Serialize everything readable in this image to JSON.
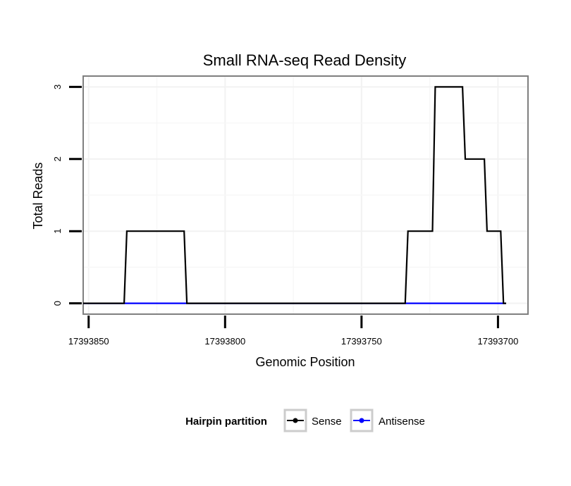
{
  "chart_data": {
    "type": "line",
    "title": "Small RNA-seq Read Density",
    "xlabel": "Genomic Position",
    "ylabel": "Total Reads",
    "x_reversed": true,
    "xlim": [
      17393852,
      17393689
    ],
    "ylim": [
      -0.15,
      3.15
    ],
    "xticks": [
      17393850,
      17393800,
      17393750,
      17393700
    ],
    "xtick_labels": [
      "17393850",
      "17393800",
      "17393750",
      "17393700"
    ],
    "yticks": [
      0,
      1,
      2,
      3
    ],
    "ytick_labels": [
      "0",
      "1",
      "2",
      "3"
    ],
    "grid": true,
    "legend": {
      "title": "Hairpin partition",
      "position": "bottom"
    },
    "series": [
      {
        "name": "Sense",
        "color": "#000000",
        "x": [
          17393852,
          17393837,
          17393836,
          17393815,
          17393814,
          17393734,
          17393733,
          17393724,
          17393723,
          17393713,
          17393712,
          17393705,
          17393704,
          17393699,
          17393698,
          17393697
        ],
        "y": [
          0,
          0,
          1,
          1,
          0,
          0,
          1,
          1,
          3,
          3,
          2,
          2,
          1,
          1,
          0,
          0
        ]
      },
      {
        "name": "Antisense",
        "color": "#0000ff",
        "x": [
          17393852,
          17393697
        ],
        "y": [
          0,
          0
        ]
      }
    ]
  }
}
